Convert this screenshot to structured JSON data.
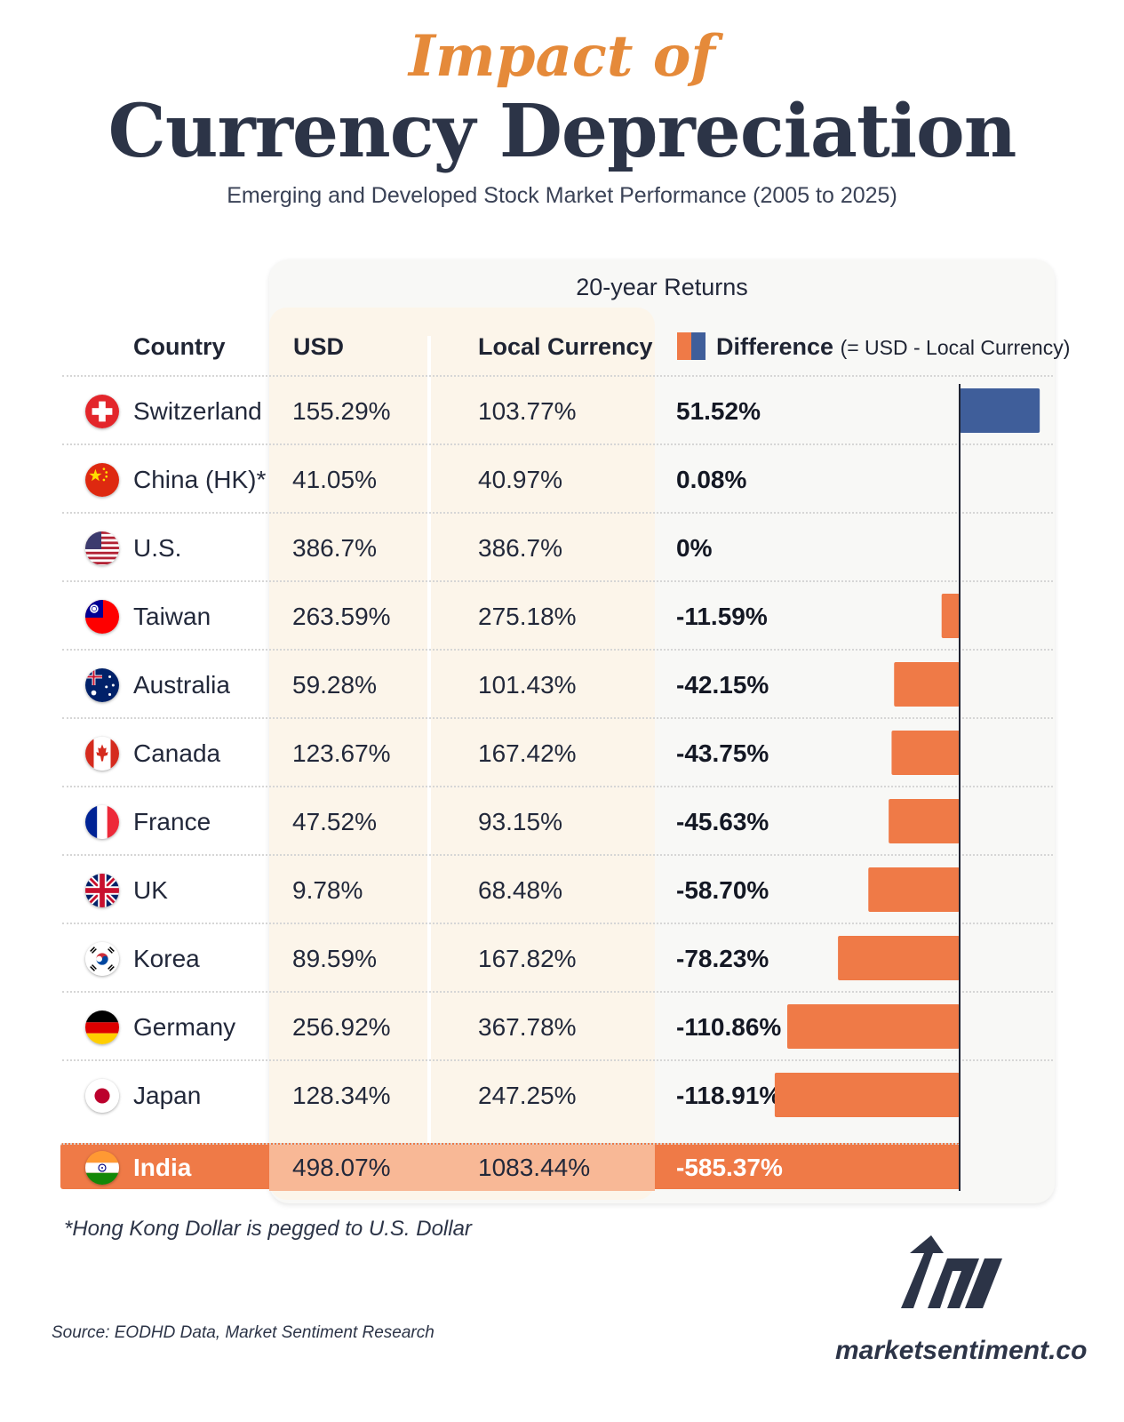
{
  "header": {
    "title_top": "Impact of",
    "title_main": "Currency Depreciation",
    "subtitle": "Emerging and Developed Stock Market Performance (2005 to 2025)"
  },
  "table": {
    "group_header": "20-year Returns",
    "col_country": "Country",
    "col_usd": "USD",
    "col_local": "Local Currency",
    "col_diff": "Difference",
    "col_diff_note": "(= USD - Local Currency)",
    "colors": {
      "positive": "#3f5e9a",
      "negative": "#ef7a47",
      "highlight_row": "#ef7a47"
    }
  },
  "chart_data": {
    "type": "bar",
    "orientation": "horizontal",
    "categories": [
      "Switzerland",
      "China (HK)*",
      "U.S.",
      "Taiwan",
      "Australia",
      "Canada",
      "France",
      "UK",
      "Korea",
      "Germany",
      "Japan",
      "India"
    ],
    "series": [
      {
        "name": "USD",
        "values": [
          "155.29%",
          "41.05%",
          "386.7%",
          "263.59%",
          "59.28%",
          "123.67%",
          "47.52%",
          "9.78%",
          "89.59%",
          "256.92%",
          "128.34%",
          "498.07%"
        ]
      },
      {
        "name": "Local Currency",
        "values": [
          "103.77%",
          "40.97%",
          "386.7%",
          "275.18%",
          "101.43%",
          "167.42%",
          "93.15%",
          "68.48%",
          "167.82%",
          "367.78%",
          "247.25%",
          "1083.44%"
        ]
      },
      {
        "name": "Difference",
        "values": [
          "51.52%",
          "0.08%",
          "0%",
          "-11.59%",
          "-42.15%",
          "-43.75%",
          "-45.63%",
          "-58.70%",
          "-78.23%",
          "-110.86%",
          "-118.91%",
          "-585.37%"
        ]
      }
    ],
    "difference_values": [
      51.52,
      0.08,
      0,
      -11.59,
      -42.15,
      -43.75,
      -45.63,
      -58.7,
      -78.23,
      -110.86,
      -118.91,
      -585.37
    ],
    "highlighted": "India",
    "flags": [
      "switzerland-flag",
      "china-flag",
      "us-flag",
      "taiwan-flag",
      "australia-flag",
      "canada-flag",
      "france-flag",
      "uk-flag",
      "korea-flag",
      "germany-flag",
      "japan-flag",
      "india-flag"
    ]
  },
  "footer": {
    "footnote": "*Hong Kong Dollar is pegged to U.S. Dollar",
    "source": "Source: EODHD Data, Market Sentiment Research",
    "brand": "marketsentiment.co"
  }
}
